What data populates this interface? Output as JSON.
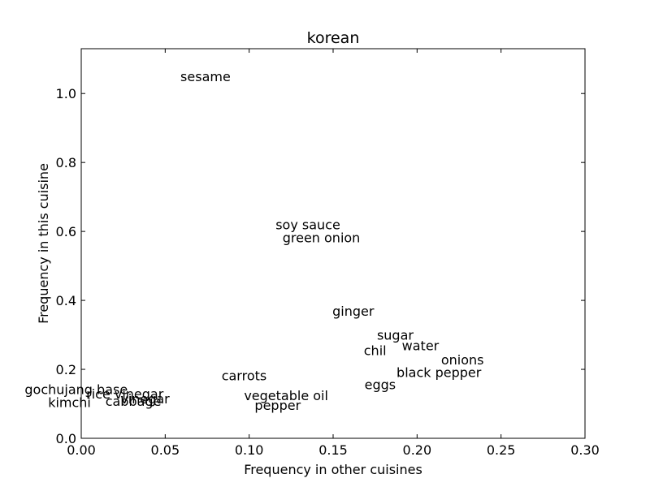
{
  "chart_data": {
    "type": "scatter",
    "title": "korean",
    "xlabel": "Frequency in other cuisines",
    "ylabel": "Frequency in this cuisine",
    "xlim": [
      0.0,
      0.3
    ],
    "ylim": [
      0.0,
      1.13
    ],
    "xticks": [
      0.0,
      0.05,
      0.1,
      0.15,
      0.2,
      0.25,
      0.3
    ],
    "xtick_labels": [
      "0.00",
      "0.05",
      "0.10",
      "0.15",
      "0.20",
      "0.25",
      "0.30"
    ],
    "yticks": [
      0.0,
      0.2,
      0.4,
      0.6,
      0.8,
      1.0
    ],
    "ytick_labels": [
      "0.0",
      "0.2",
      "0.4",
      "0.6",
      "0.8",
      "1.0"
    ],
    "grid": false,
    "points": [
      {
        "label": "sesame",
        "x": 0.074,
        "y": 1.05
      },
      {
        "label": "soy sauce",
        "x": 0.135,
        "y": 0.62
      },
      {
        "label": "green onion",
        "x": 0.143,
        "y": 0.583
      },
      {
        "label": "ginger",
        "x": 0.162,
        "y": 0.37
      },
      {
        "label": "sugar",
        "x": 0.187,
        "y": 0.3
      },
      {
        "label": "water",
        "x": 0.202,
        "y": 0.27
      },
      {
        "label": "chil",
        "x": 0.175,
        "y": 0.256
      },
      {
        "label": "onions",
        "x": 0.227,
        "y": 0.228
      },
      {
        "label": "black pepper",
        "x": 0.213,
        "y": 0.192
      },
      {
        "label": "eggs",
        "x": 0.178,
        "y": 0.157
      },
      {
        "label": "carrots",
        "x": 0.097,
        "y": 0.183
      },
      {
        "label": "vegetable oil",
        "x": 0.122,
        "y": 0.125
      },
      {
        "label": "pepper",
        "x": 0.117,
        "y": 0.097
      },
      {
        "label": "gochujang base",
        "x": -0.003,
        "y": 0.143
      },
      {
        "label": "rice vinegar",
        "x": 0.026,
        "y": 0.13
      },
      {
        "label": "vinegar",
        "x": 0.038,
        "y": 0.115
      },
      {
        "label": "cabbage",
        "x": 0.031,
        "y": 0.108
      },
      {
        "label": "kimchi",
        "x": -0.007,
        "y": 0.105
      }
    ]
  }
}
